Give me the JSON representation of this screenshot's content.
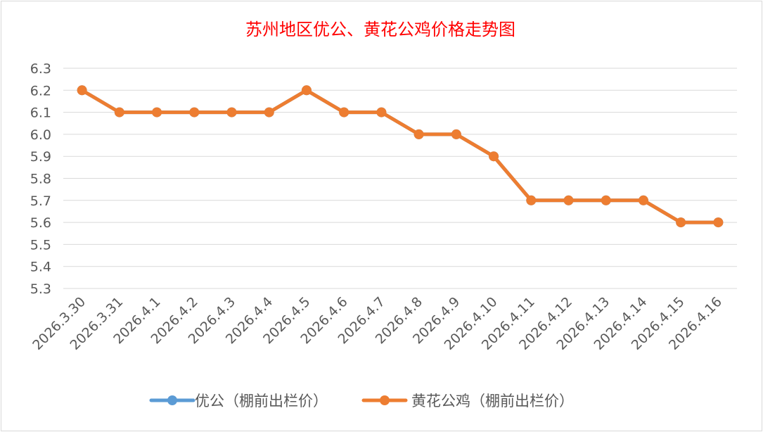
{
  "chart_data": {
    "type": "line",
    "title": "苏州地区优公、黄花公鸡价格走势图",
    "title_color": "#ff0000",
    "xlabel": "",
    "ylabel": "",
    "ylim": [
      5.3,
      6.3
    ],
    "yticks": [
      "6.3",
      "6.2",
      "6.1",
      "6.0",
      "5.9",
      "5.8",
      "5.7",
      "5.6",
      "5.5",
      "5.4",
      "5.3"
    ],
    "grid": true,
    "legend_position": "bottom",
    "categories": [
      "2026.3.30",
      "2026.3.31",
      "2026.4.1",
      "2026.4.2",
      "2026.4.3",
      "2026.4.4",
      "2026.4.5",
      "2026.4.6",
      "2026.4.7",
      "2026.4.8",
      "2026.4.9",
      "2026.4.10",
      "2026.4.11",
      "2026.4.12",
      "2026.4.13",
      "2026.4.14",
      "2026.4.15",
      "2026.4.16"
    ],
    "series": [
      {
        "name": "优公（棚前出栏价）",
        "color": "#5b9bd5",
        "values": [
          6.2,
          6.1,
          6.1,
          6.1,
          6.1,
          6.1,
          6.2,
          6.1,
          6.1,
          6.0,
          6.0,
          5.9,
          5.7,
          5.7,
          5.7,
          5.7,
          5.6,
          5.6
        ]
      },
      {
        "name": "黄花公鸡（棚前出栏价）",
        "color": "#ed7d31",
        "values": [
          6.2,
          6.1,
          6.1,
          6.1,
          6.1,
          6.1,
          6.2,
          6.1,
          6.1,
          6.0,
          6.0,
          5.9,
          5.7,
          5.7,
          5.7,
          5.7,
          5.6,
          5.6
        ]
      }
    ]
  }
}
